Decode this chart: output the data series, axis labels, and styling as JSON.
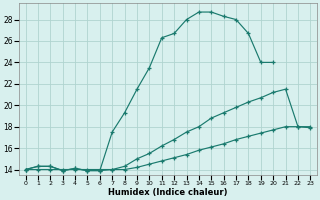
{
  "xlabel": "Humidex (Indice chaleur)",
  "bg_color": "#d8f0ee",
  "grid_color": "#b0d4d0",
  "line_color": "#1a7a6e",
  "xlim": [
    -0.5,
    23.5
  ],
  "ylim": [
    13.5,
    29.5
  ],
  "xticks": [
    0,
    1,
    2,
    3,
    4,
    5,
    6,
    7,
    8,
    9,
    10,
    11,
    12,
    13,
    14,
    15,
    16,
    17,
    18,
    19,
    20,
    21,
    22,
    23
  ],
  "yticks": [
    14,
    16,
    18,
    20,
    22,
    24,
    26,
    28
  ],
  "line1_x": [
    0,
    1,
    2,
    3,
    4,
    5,
    6,
    7,
    8,
    9,
    10,
    11,
    12,
    13,
    14,
    15,
    16,
    17,
    18,
    19,
    20
  ],
  "line1_y": [
    14.0,
    14.3,
    14.3,
    13.9,
    14.1,
    13.9,
    13.9,
    17.5,
    19.3,
    21.5,
    23.5,
    26.3,
    26.7,
    28.0,
    28.7,
    28.7,
    28.3,
    28.0,
    26.7,
    24.0,
    24.0
  ],
  "line2_x": [
    0,
    1,
    2,
    3,
    4,
    5,
    6,
    7,
    8,
    9,
    10,
    11,
    12,
    13,
    14,
    15,
    16,
    17,
    18,
    19,
    20,
    21,
    22,
    23
  ],
  "line2_y": [
    14.0,
    14.3,
    14.3,
    13.9,
    14.1,
    13.9,
    13.9,
    14.0,
    14.3,
    15.0,
    15.5,
    16.2,
    16.8,
    17.5,
    18.0,
    18.8,
    19.3,
    19.8,
    20.3,
    20.7,
    21.2,
    21.5,
    18.0,
    17.9
  ],
  "line3_x": [
    0,
    1,
    2,
    3,
    4,
    5,
    6,
    7,
    8,
    9,
    10,
    11,
    12,
    13,
    14,
    15,
    16,
    17,
    18,
    19,
    20,
    21,
    22,
    23
  ],
  "line3_y": [
    14.0,
    14.0,
    14.0,
    14.0,
    14.0,
    14.0,
    14.0,
    14.0,
    14.0,
    14.2,
    14.5,
    14.8,
    15.1,
    15.4,
    15.8,
    16.1,
    16.4,
    16.8,
    17.1,
    17.4,
    17.7,
    18.0,
    18.0,
    18.0
  ]
}
